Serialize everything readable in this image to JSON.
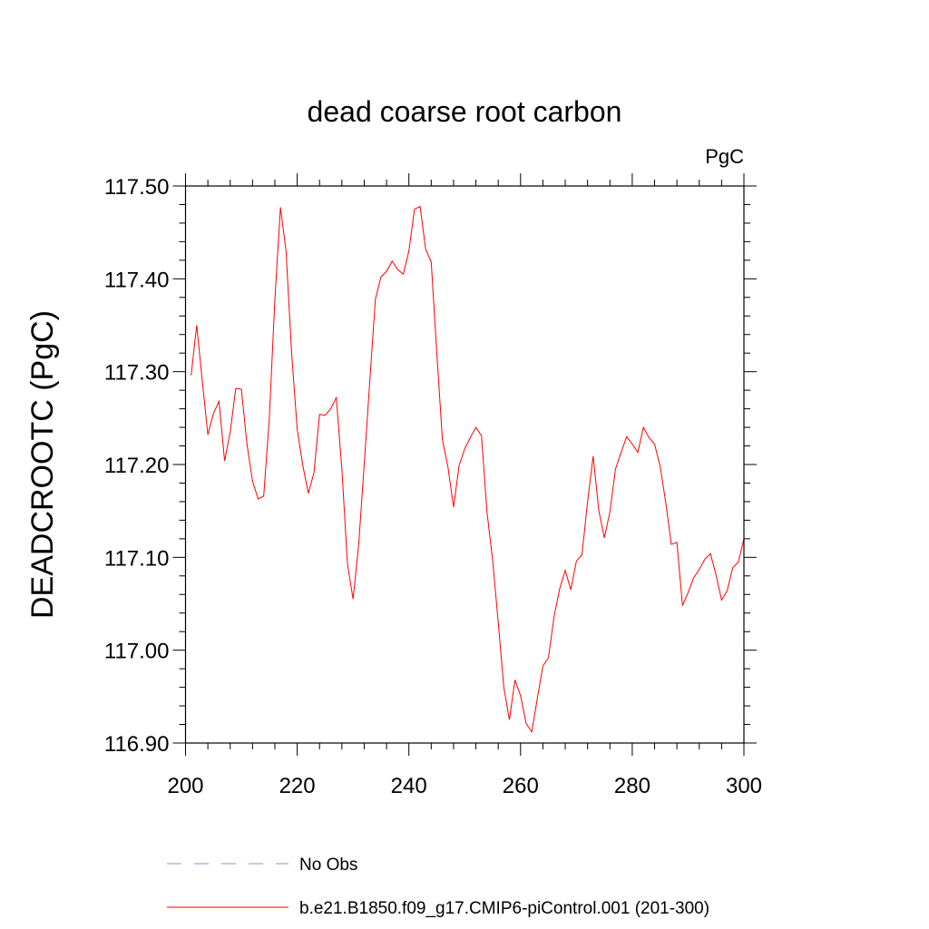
{
  "chart_data": {
    "type": "line",
    "title": "dead coarse root carbon",
    "units_label": "PgC",
    "ylabel": "DEADCROOTC  (PgC)",
    "xlabel": "",
    "xlim": [
      200,
      300
    ],
    "ylim": [
      116.9,
      117.5
    ],
    "x_ticks": [
      "200",
      "220",
      "240",
      "260",
      "280",
      "300"
    ],
    "y_ticks": [
      "116.90",
      "117.00",
      "117.10",
      "117.20",
      "117.30",
      "117.40",
      "117.50"
    ],
    "grid": false,
    "legend_position": "bottom",
    "series": [
      {
        "name": "No Obs",
        "color": "#8c8cd8",
        "dashed": true,
        "x": [],
        "y": []
      },
      {
        "name": "b.e21.B1850.f09_g17.CMIP6-piControl.001 (201-300)",
        "color": "#ff0000",
        "dashed": false,
        "x": [
          201,
          202,
          203,
          204,
          205,
          206,
          207,
          208,
          209,
          210,
          211,
          212,
          213,
          214,
          215,
          216,
          217,
          218,
          219,
          220,
          221,
          222,
          223,
          224,
          225,
          226,
          227,
          228,
          229,
          230,
          231,
          232,
          233,
          234,
          235,
          236,
          237,
          238,
          239,
          240,
          241,
          242,
          243,
          244,
          245,
          246,
          247,
          248,
          249,
          250,
          251,
          252,
          253,
          254,
          255,
          256,
          257,
          258,
          259,
          260,
          261,
          262,
          263,
          264,
          265,
          266,
          267,
          268,
          269,
          270,
          271,
          272,
          273,
          274,
          275,
          276,
          277,
          278,
          279,
          280,
          281,
          282,
          283,
          284,
          285,
          286,
          287,
          288,
          289,
          290,
          291,
          292,
          293,
          294,
          295,
          296,
          297,
          298,
          299,
          300
        ],
        "y": [
          117.296,
          117.35,
          117.29,
          117.232,
          117.255,
          117.268,
          117.204,
          117.235,
          117.282,
          117.281,
          117.222,
          117.182,
          117.163,
          117.166,
          117.249,
          117.378,
          117.477,
          117.43,
          117.32,
          117.238,
          117.199,
          117.169,
          117.191,
          117.254,
          117.253,
          117.26,
          117.272,
          117.195,
          117.093,
          117.055,
          117.113,
          117.2,
          117.29,
          117.378,
          117.402,
          117.408,
          117.419,
          117.41,
          117.405,
          117.43,
          117.475,
          117.478,
          117.432,
          117.418,
          117.32,
          117.227,
          117.197,
          117.154,
          117.199,
          117.217,
          117.229,
          117.24,
          117.231,
          117.148,
          117.097,
          117.03,
          116.96,
          116.925,
          116.968,
          116.951,
          116.921,
          116.912,
          116.948,
          116.983,
          116.992,
          117.036,
          117.066,
          117.086,
          117.065,
          117.096,
          117.103,
          117.16,
          117.209,
          117.151,
          117.121,
          117.149,
          117.195,
          117.213,
          117.23,
          117.222,
          117.213,
          117.24,
          117.229,
          117.222,
          117.198,
          117.159,
          117.114,
          117.116,
          117.048,
          117.062,
          117.078,
          117.087,
          117.098,
          117.104,
          117.081,
          117.054,
          117.064,
          117.089,
          117.095,
          117.12
        ]
      }
    ]
  }
}
